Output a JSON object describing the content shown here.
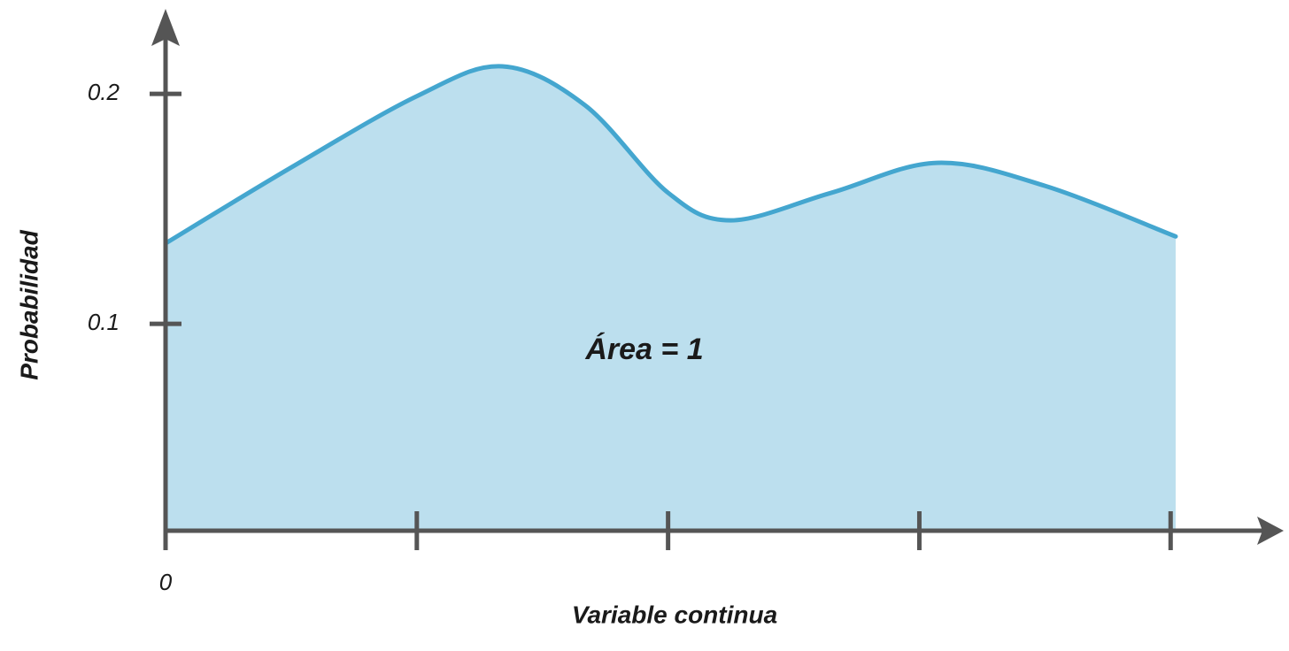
{
  "chart_data": {
    "type": "area",
    "y_label": "Probabilidad",
    "x_label": "Variable continua",
    "annotation": "Área = 1",
    "x": [
      0,
      0.5,
      1.0,
      1.34,
      1.67,
      2.0,
      2.25,
      2.65,
      3.07,
      3.5,
      4.02
    ],
    "values": [
      0.135,
      0.168,
      0.199,
      0.212,
      0.195,
      0.157,
      0.145,
      0.157,
      0.17,
      0.16,
      0.138
    ],
    "color": "#44a6cf",
    "fill": "#bcdfee",
    "xlim": [
      0,
      4.45
    ],
    "ylim": [
      0.01,
      0.237
    ],
    "xticks": [
      0,
      {
        "value": 1,
        "label": null
      },
      {
        "value": 2,
        "label": null
      },
      {
        "value": 3,
        "label": null
      },
      {
        "value": 4,
        "label": null
      }
    ],
    "yticks": [
      0.1,
      0.2
    ],
    "grid": false
  }
}
